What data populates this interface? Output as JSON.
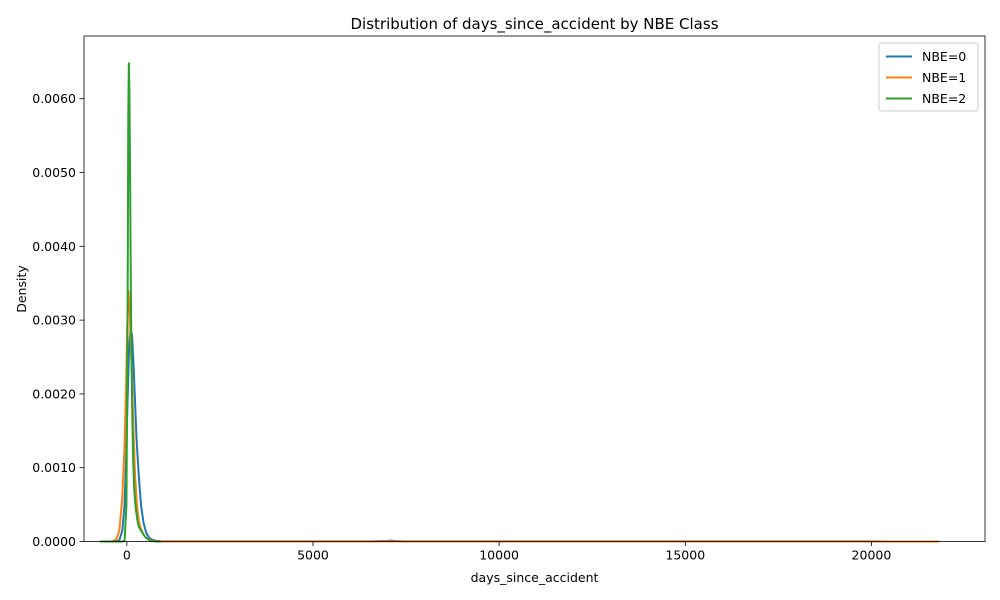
{
  "chart_data": {
    "type": "line",
    "title": "Distribution of days_since_accident by NBE Class",
    "xlabel": "days_since_accident",
    "ylabel": "Density",
    "xlim": [
      -1150,
      23050
    ],
    "ylim": [
      0,
      0.00685
    ],
    "x_ticks": [
      0,
      5000,
      10000,
      15000,
      20000
    ],
    "x_tick_labels": [
      "0",
      "5000",
      "10000",
      "15000",
      "20000"
    ],
    "y_ticks": [
      0,
      0.001,
      0.002,
      0.003,
      0.004,
      0.005,
      0.006
    ],
    "y_tick_labels": [
      "0.0000",
      "0.0010",
      "0.0020",
      "0.0030",
      "0.0040",
      "0.0050",
      "0.0060"
    ],
    "grid": false,
    "legend_position": "top-right",
    "series": [
      {
        "name": "NBE=0",
        "color": "#1f77b4",
        "x": [
          -300,
          -200,
          -120,
          -60,
          -20,
          20,
          60,
          100,
          140,
          180,
          220,
          260,
          320,
          380,
          450,
          520,
          600,
          700,
          800,
          900,
          1000,
          1500,
          3000,
          5000,
          6500,
          7000,
          7100,
          7200,
          7400,
          8000,
          10000,
          15000,
          20000,
          21800
        ],
        "y": [
          0,
          2e-05,
          0.00015,
          0.0005,
          0.0011,
          0.0019,
          0.0026,
          0.00288,
          0.0028,
          0.0024,
          0.0019,
          0.0014,
          0.0009,
          0.0005,
          0.00025,
          0.00012,
          5e-05,
          2e-05,
          8e-06,
          4e-06,
          2e-06,
          1.5e-06,
          1.5e-06,
          1.5e-06,
          2e-06,
          8e-06,
          1.2e-05,
          8e-06,
          3e-06,
          1.5e-06,
          1e-06,
          1e-06,
          1e-06,
          0
        ]
      },
      {
        "name": "NBE=1",
        "color": "#ff7f0e",
        "x": [
          -600,
          -400,
          -280,
          -200,
          -120,
          -60,
          -20,
          10,
          40,
          70,
          100,
          140,
          180,
          220,
          270,
          320,
          380,
          450,
          520,
          600,
          700,
          800,
          1000,
          2000,
          5000,
          10000,
          15000,
          20000,
          21800
        ],
        "y": [
          0,
          2e-06,
          3e-05,
          0.00015,
          0.0006,
          0.0013,
          0.0021,
          0.0029,
          0.0034,
          0.0032,
          0.0028,
          0.0022,
          0.0015,
          0.0009,
          0.0005,
          0.00028,
          0.00017,
          9e-05,
          5e-05,
          2.5e-05,
          1e-05,
          5e-06,
          2e-06,
          1e-06,
          1e-06,
          1e-06,
          1e-06,
          1e-06,
          0
        ]
      },
      {
        "name": "NBE=2",
        "color": "#2ca02c",
        "x": [
          -700,
          -300,
          -120,
          -60,
          -10,
          20,
          40,
          55,
          70,
          90,
          110,
          140,
          170,
          200,
          240,
          280,
          320,
          380,
          440,
          500,
          560,
          620,
          700,
          800,
          900
        ],
        "y": [
          0,
          0,
          0,
          1e-05,
          0.0005,
          0.003,
          0.0058,
          0.00648,
          0.0061,
          0.0048,
          0.0033,
          0.0019,
          0.0011,
          0.0007,
          0.00045,
          0.0003,
          0.0002,
          0.00015,
          0.0001,
          6e-05,
          3e-05,
          1.5e-05,
          5e-06,
          1e-06,
          0
        ]
      }
    ]
  }
}
